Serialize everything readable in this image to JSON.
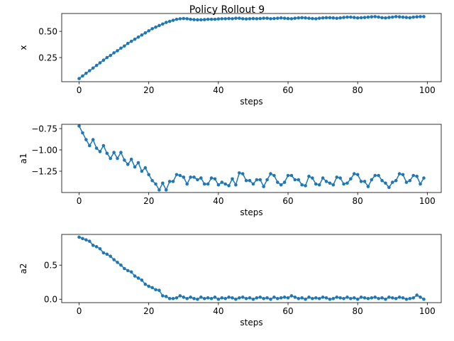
{
  "chart_data": {
    "type": "line",
    "title": "Policy Rollout 9",
    "color": "#1f77b4",
    "panels": [
      {
        "xlabel": "steps",
        "ylabel": "x",
        "xlim": [
          -5,
          104
        ],
        "ylim": [
          0.02,
          0.67
        ],
        "xticks": [
          0,
          20,
          40,
          60,
          80,
          100
        ],
        "yticks": [
          0.25,
          0.5
        ],
        "ytick_labels": [
          "0.25",
          "0.50"
        ],
        "values": [
          0.05,
          0.075,
          0.1,
          0.125,
          0.15,
          0.175,
          0.2,
          0.225,
          0.25,
          0.27,
          0.295,
          0.315,
          0.34,
          0.36,
          0.385,
          0.405,
          0.425,
          0.445,
          0.465,
          0.485,
          0.505,
          0.525,
          0.54,
          0.555,
          0.57,
          0.585,
          0.595,
          0.605,
          0.615,
          0.62,
          0.622,
          0.62,
          0.615,
          0.612,
          0.61,
          0.61,
          0.612,
          0.615,
          0.615,
          0.615,
          0.618,
          0.62,
          0.62,
          0.622,
          0.62,
          0.625,
          0.625,
          0.62,
          0.618,
          0.62,
          0.622,
          0.62,
          0.622,
          0.625,
          0.625,
          0.62,
          0.622,
          0.625,
          0.628,
          0.625,
          0.622,
          0.62,
          0.625,
          0.628,
          0.63,
          0.628,
          0.625,
          0.622,
          0.62,
          0.625,
          0.628,
          0.63,
          0.63,
          0.628,
          0.625,
          0.628,
          0.632,
          0.635,
          0.635,
          0.632,
          0.628,
          0.63,
          0.632,
          0.635,
          0.638,
          0.64,
          0.636,
          0.63,
          0.628,
          0.632,
          0.635,
          0.64,
          0.638,
          0.635,
          0.632,
          0.63,
          0.635,
          0.638,
          0.64,
          0.64
        ]
      },
      {
        "xlabel": "steps",
        "ylabel": "a1",
        "xlim": [
          -5,
          104
        ],
        "ylim": [
          -1.5,
          -0.7
        ],
        "xticks": [
          0,
          20,
          40,
          60,
          80,
          100
        ],
        "yticks": [
          -1.25,
          -1.0,
          -0.75
        ],
        "ytick_labels": [
          "−1.25",
          "−1.00",
          "−0.75"
        ],
        "values": [
          -0.72,
          -0.8,
          -0.88,
          -0.95,
          -0.88,
          -0.98,
          -1.02,
          -0.95,
          -1.04,
          -1.1,
          -1.03,
          -1.1,
          -1.03,
          -1.12,
          -1.17,
          -1.11,
          -1.2,
          -1.15,
          -1.25,
          -1.21,
          -1.29,
          -1.36,
          -1.4,
          -1.47,
          -1.39,
          -1.47,
          -1.37,
          -1.37,
          -1.29,
          -1.3,
          -1.32,
          -1.4,
          -1.32,
          -1.32,
          -1.35,
          -1.33,
          -1.4,
          -1.4,
          -1.33,
          -1.34,
          -1.41,
          -1.38,
          -1.4,
          -1.42,
          -1.34,
          -1.41,
          -1.27,
          -1.28,
          -1.36,
          -1.36,
          -1.4,
          -1.35,
          -1.35,
          -1.43,
          -1.35,
          -1.28,
          -1.3,
          -1.38,
          -1.41,
          -1.38,
          -1.3,
          -1.3,
          -1.35,
          -1.35,
          -1.41,
          -1.42,
          -1.31,
          -1.33,
          -1.4,
          -1.41,
          -1.33,
          -1.37,
          -1.39,
          -1.41,
          -1.32,
          -1.33,
          -1.4,
          -1.39,
          -1.34,
          -1.28,
          -1.29,
          -1.37,
          -1.37,
          -1.43,
          -1.35,
          -1.3,
          -1.3,
          -1.36,
          -1.39,
          -1.44,
          -1.38,
          -1.36,
          -1.28,
          -1.29,
          -1.38,
          -1.36,
          -1.3,
          -1.31,
          -1.4,
          -1.33
        ]
      },
      {
        "xlabel": "steps",
        "ylabel": "a2",
        "xlim": [
          -5,
          104
        ],
        "ylim": [
          -0.05,
          0.95
        ],
        "xticks": [
          0,
          20,
          40,
          60,
          80,
          100
        ],
        "yticks": [
          0.0,
          0.5
        ],
        "ytick_labels": [
          "0.0",
          "0.5"
        ],
        "values": [
          0.91,
          0.89,
          0.87,
          0.85,
          0.79,
          0.77,
          0.74,
          0.68,
          0.66,
          0.63,
          0.58,
          0.54,
          0.5,
          0.45,
          0.42,
          0.4,
          0.34,
          0.31,
          0.28,
          0.22,
          0.19,
          0.17,
          0.14,
          0.13,
          0.05,
          0.04,
          0.01,
          0.01,
          0.02,
          0.05,
          0.03,
          0.01,
          0.03,
          0.01,
          0.0,
          0.03,
          0.01,
          0.02,
          0.01,
          0.03,
          0.0,
          0.02,
          0.01,
          0.03,
          0.02,
          0.0,
          0.02,
          0.03,
          0.01,
          0.02,
          0.0,
          0.02,
          0.03,
          0.01,
          0.02,
          0.0,
          0.03,
          0.01,
          0.02,
          0.03,
          0.02,
          0.05,
          0.03,
          0.01,
          0.02,
          0.0,
          0.03,
          0.01,
          0.02,
          0.01,
          0.03,
          0.02,
          0.0,
          0.01,
          0.03,
          0.02,
          0.01,
          0.03,
          0.01,
          0.02,
          0.0,
          0.03,
          0.02,
          0.01,
          0.02,
          0.03,
          0.01,
          0.02,
          0.0,
          0.03,
          0.02,
          0.01,
          0.03,
          0.02,
          0.0,
          0.01,
          0.02,
          0.06,
          0.03,
          0.0
        ]
      }
    ]
  }
}
